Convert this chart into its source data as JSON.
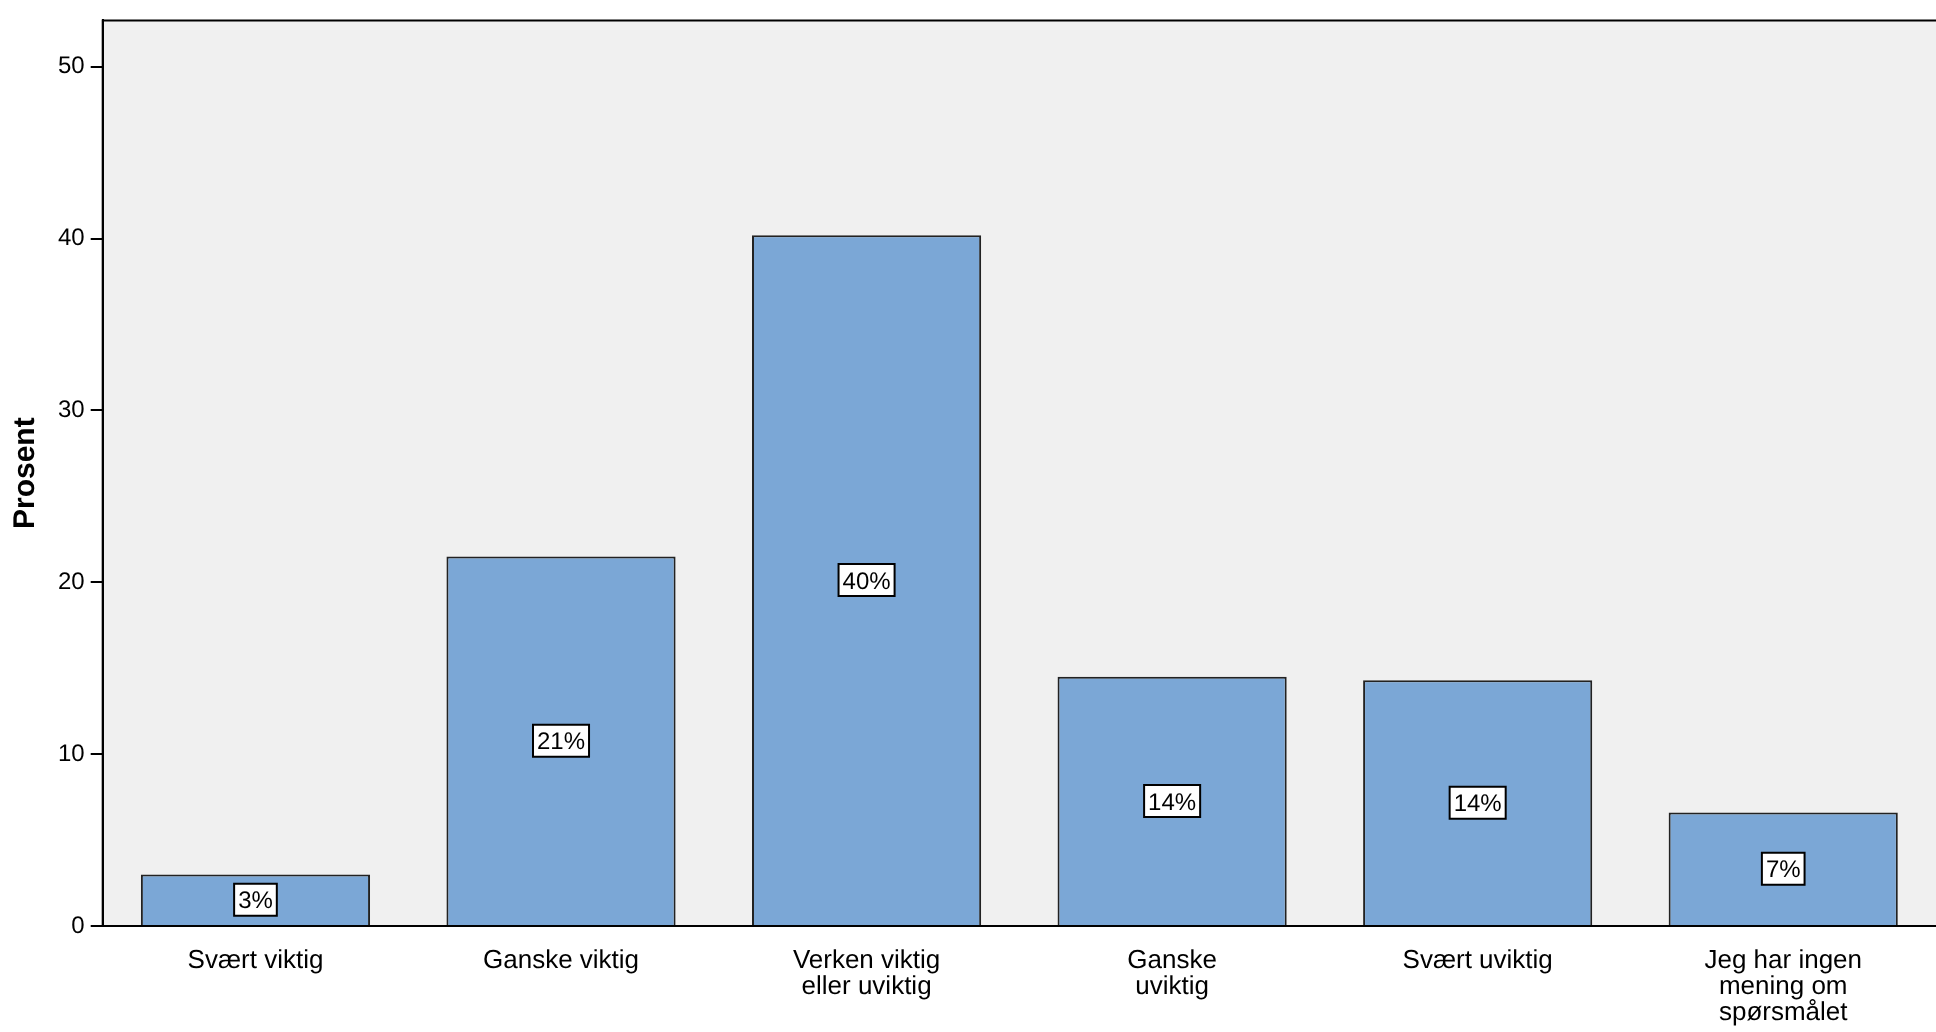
{
  "chart_data": {
    "type": "bar",
    "ylabel": "Prosent",
    "categories": [
      "Svært viktig",
      "Ganske viktig",
      "Verken viktig eller uviktig",
      "Ganske uviktig",
      "Svært uviktig",
      "Jeg har ingen mening om spørsmålet"
    ],
    "values": [
      3.0,
      21.5,
      40.2,
      14.5,
      14.3,
      6.6
    ],
    "value_labels": [
      "3%",
      "21%",
      "40%",
      "14%",
      "14%",
      "7%"
    ],
    "color": "#7ba7d6",
    "ylim": [
      0,
      52.7
    ],
    "yticks": [
      0,
      10,
      20,
      30,
      40,
      50
    ],
    "grid": false,
    "legend": false
  }
}
